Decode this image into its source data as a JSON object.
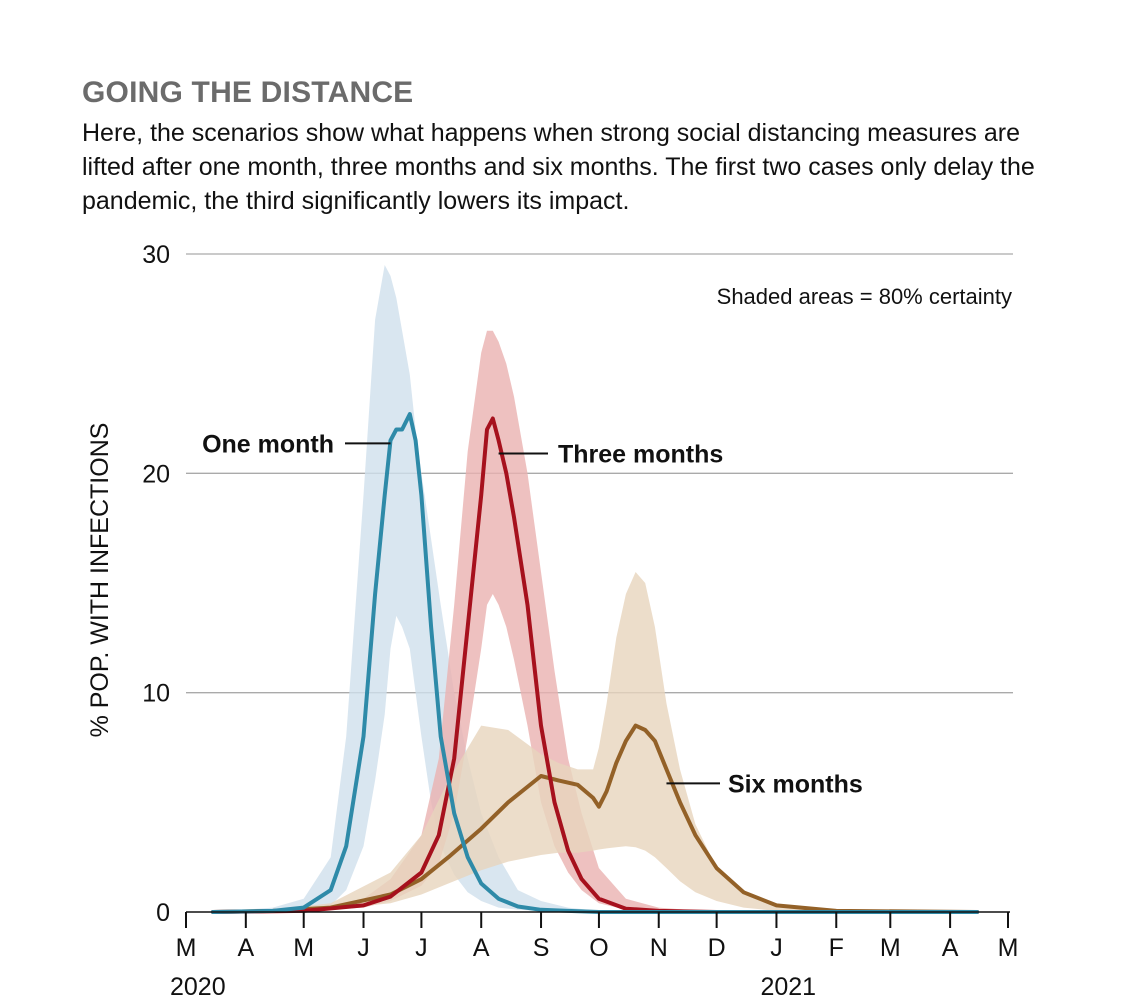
{
  "title": "GOING THE DISTANCE",
  "subtitle": "Here, the scenarios show what happens when strong social distancing measures are lifted after one month, three months and six months. The first two cases only delay the pandemic, the third significantly lowers its impact.",
  "annotation": "Shaded areas = 80% certainty",
  "colors": {
    "one_month": "#2e8aa8",
    "one_month_band": "#cfe0ec",
    "three_months": "#a6111d",
    "three_months_band": "#eab2b0",
    "six_months": "#936128",
    "six_months_band": "#e7d5bd",
    "grid": "#aaaaaa"
  },
  "chart_data": {
    "type": "line",
    "ylabel": "% POP. WITH INFECTIONS",
    "ylim": [
      0,
      30
    ],
    "yticks": [
      0,
      10,
      20,
      30
    ],
    "xlim": [
      "2020-03-01",
      "2021-05-01"
    ],
    "xtick_labels": [
      "M",
      "A",
      "M",
      "J",
      "J",
      "A",
      "S",
      "O",
      "N",
      "D",
      "J",
      "F",
      "M",
      "A",
      "M"
    ],
    "year_labels": [
      {
        "label": "2020",
        "month_index": 0
      },
      {
        "label": "2021",
        "month_index": 10
      }
    ],
    "grid": true,
    "series": [
      {
        "name": "One month",
        "key": "one_month",
        "x": [
          "2020-03-15",
          "2020-04-15",
          "2020-05-01",
          "2020-05-15",
          "2020-05-23",
          "2020-06-01",
          "2020-06-07",
          "2020-06-12",
          "2020-06-15",
          "2020-06-18",
          "2020-06-21",
          "2020-06-25",
          "2020-06-28",
          "2020-07-01",
          "2020-07-06",
          "2020-07-11",
          "2020-07-18",
          "2020-07-25",
          "2020-08-01",
          "2020-08-10",
          "2020-08-20",
          "2020-09-01",
          "2020-09-15",
          "2020-10-01",
          "2020-11-01",
          "2021-01-01",
          "2021-04-15"
        ],
        "y": [
          0,
          0.05,
          0.2,
          1,
          3,
          8,
          14.5,
          19,
          21.5,
          22,
          22,
          22.7,
          21.5,
          19,
          13,
          8,
          4.5,
          2.5,
          1.3,
          0.6,
          0.25,
          0.1,
          0.05,
          0,
          0,
          0,
          0
        ],
        "band_low": [
          0,
          0,
          0.05,
          0.3,
          1,
          3,
          6,
          9,
          12,
          13.5,
          13,
          12,
          10,
          8,
          5,
          3,
          1.7,
          0.9,
          0.5,
          0.2,
          0.1,
          0.05,
          0,
          0,
          0,
          0,
          0
        ],
        "band_high": [
          0,
          0.2,
          0.6,
          2.5,
          8,
          19,
          27,
          29.5,
          29,
          28,
          26.5,
          24.5,
          22,
          20,
          17,
          14,
          10,
          7,
          4.5,
          2.5,
          1,
          0.5,
          0.2,
          0.05,
          0,
          0,
          0
        ]
      },
      {
        "name": "Three months",
        "key": "three_months",
        "x": [
          "2020-03-15",
          "2020-05-01",
          "2020-06-01",
          "2020-06-15",
          "2020-07-01",
          "2020-07-10",
          "2020-07-18",
          "2020-07-25",
          "2020-08-01",
          "2020-08-04",
          "2020-08-07",
          "2020-08-10",
          "2020-08-14",
          "2020-08-18",
          "2020-08-25",
          "2020-09-01",
          "2020-09-08",
          "2020-09-15",
          "2020-09-22",
          "2020-10-01",
          "2020-10-15",
          "2020-11-01",
          "2020-12-01",
          "2021-04-15"
        ],
        "y": [
          0,
          0.05,
          0.3,
          0.7,
          1.8,
          3.5,
          7,
          13,
          19,
          22,
          22.5,
          21.5,
          20,
          18,
          14,
          8.5,
          5,
          2.8,
          1.5,
          0.6,
          0.15,
          0.05,
          0,
          0
        ],
        "band_low": [
          0,
          0.05,
          0.2,
          0.5,
          1.2,
          2.2,
          4.5,
          8,
          12,
          14,
          14.5,
          14,
          13,
          11.5,
          8.5,
          5,
          3,
          1.8,
          1,
          0.4,
          0.1,
          0.05,
          0,
          0
        ],
        "band_high": [
          0,
          0.1,
          0.6,
          1.5,
          3.5,
          7,
          14,
          21,
          25.5,
          26.5,
          26.5,
          26,
          25,
          23.5,
          20,
          15.5,
          11,
          7,
          4.5,
          2,
          0.6,
          0.2,
          0,
          0
        ]
      },
      {
        "name": "Six months",
        "key": "six_months",
        "x": [
          "2020-03-15",
          "2020-04-15",
          "2020-05-15",
          "2020-06-15",
          "2020-07-01",
          "2020-07-15",
          "2020-08-01",
          "2020-08-15",
          "2020-09-01",
          "2020-09-10",
          "2020-09-20",
          "2020-09-28",
          "2020-10-01",
          "2020-10-05",
          "2020-10-10",
          "2020-10-15",
          "2020-10-20",
          "2020-10-25",
          "2020-10-30",
          "2020-11-05",
          "2020-11-12",
          "2020-11-20",
          "2020-12-01",
          "2020-12-15",
          "2021-01-01",
          "2021-02-01",
          "2021-04-15"
        ],
        "y": [
          0,
          0.05,
          0.2,
          0.8,
          1.5,
          2.5,
          3.8,
          5,
          6.2,
          6,
          5.8,
          5.2,
          4.8,
          5.5,
          6.8,
          7.8,
          8.5,
          8.3,
          7.8,
          6.5,
          5,
          3.5,
          2,
          0.9,
          0.3,
          0.05,
          0
        ],
        "band_low": [
          0,
          0.03,
          0.1,
          0.4,
          0.8,
          1.3,
          1.9,
          2.3,
          2.6,
          2.7,
          2.7,
          2.8,
          2.85,
          2.9,
          2.95,
          3,
          2.95,
          2.8,
          2.5,
          2,
          1.4,
          0.9,
          0.5,
          0.2,
          0.05,
          0,
          0
        ],
        "band_high": [
          0,
          0.1,
          0.4,
          1.8,
          3.5,
          6,
          8.5,
          8.3,
          7.2,
          6.8,
          6.5,
          6.5,
          7.5,
          9.5,
          12.5,
          14.5,
          15.5,
          15,
          13,
          9.5,
          6.5,
          4,
          2,
          0.8,
          0.3,
          0.05,
          0
        ]
      }
    ]
  }
}
